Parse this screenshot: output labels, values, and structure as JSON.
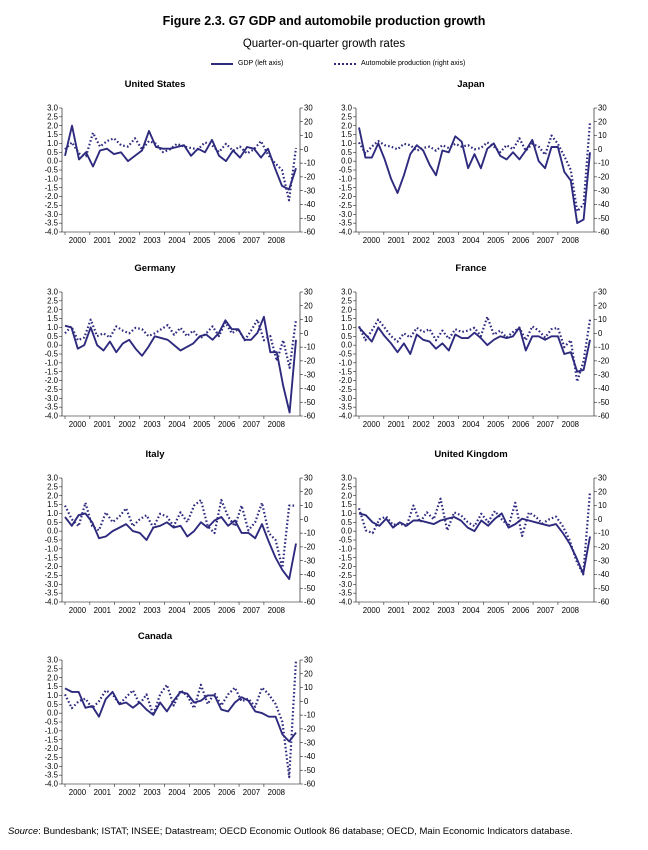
{
  "title": "Figure 2.3. G7 GDP and automobile production growth",
  "subtitle": "Quarter-on-quarter growth rates",
  "legend": {
    "gdp": "GDP (left axis)",
    "auto": "Automobile production (right axis)"
  },
  "colors": {
    "series": "#2e2b7e"
  },
  "source": {
    "label": "Source",
    "text": ": Bundesbank; ISTAT; INSEE; Datastream; OECD Economic Outlook 86 database; OECD, Main Economic Indicators database."
  },
  "chart_data": [
    {
      "type": "line",
      "title": "United States",
      "x_tick_labels": [
        "2000",
        "2001",
        "2002",
        "2003",
        "2004",
        "2005",
        "2006",
        "2007",
        "2008"
      ],
      "left_ylim": [
        -4.0,
        3.0
      ],
      "left_ticks": [
        "3.0",
        "2.5",
        "2.0",
        "1.5",
        "1.0",
        "0.5",
        "0.0",
        "-0.5",
        "-1.0",
        "-1.5",
        "-2.0",
        "-2.5",
        "-3.0",
        "-3.5",
        "-4.0"
      ],
      "right_ylim": [
        -60,
        30
      ],
      "right_ticks": [
        "30",
        "20",
        "10",
        "0",
        "-10",
        "-20",
        "-30",
        "-40",
        "-50",
        "-60"
      ],
      "series": [
        {
          "name": "GDP (left axis)",
          "axis": "left",
          "style": "solid",
          "values": [
            0.3,
            2.0,
            0.1,
            0.5,
            -0.3,
            0.6,
            0.7,
            0.4,
            0.5,
            0.0,
            0.3,
            0.6,
            1.7,
            0.8,
            0.7,
            0.7,
            0.8,
            0.9,
            0.3,
            0.7,
            0.5,
            1.2,
            0.3,
            0.0,
            0.6,
            0.2,
            0.8,
            0.7,
            0.2,
            0.7,
            -0.4,
            -1.4,
            -1.6,
            -0.4
          ]
        },
        {
          "name": "Automobile production (right axis)",
          "axis": "right",
          "style": "dotted",
          "values": [
            0,
            5,
            -3,
            -5,
            12,
            2,
            6,
            8,
            3,
            2,
            8,
            0,
            6,
            4,
            -2,
            0,
            4,
            2,
            1,
            0,
            5,
            3,
            -2,
            4,
            -1,
            2,
            -3,
            0,
            6,
            -4,
            -10,
            -15,
            -37,
            1
          ]
        }
      ]
    },
    {
      "type": "line",
      "title": "Japan",
      "x_tick_labels": [
        "2000",
        "2001",
        "2002",
        "2003",
        "2004",
        "2005",
        "2006",
        "2007",
        "2008"
      ],
      "left_ylim": [
        -4.0,
        3.0
      ],
      "left_ticks": [
        "3.0",
        "2.5",
        "2.0",
        "1.5",
        "1.0",
        "0.5",
        "0.0",
        "-0.5",
        "-1.0",
        "-1.5",
        "-2.0",
        "-2.5",
        "-3.0",
        "-3.5",
        "-4.0"
      ],
      "right_ylim": [
        -60,
        30
      ],
      "right_ticks": [
        "30",
        "20",
        "10",
        "0",
        "-10",
        "-20",
        "-30",
        "-40",
        "-50",
        "-60"
      ],
      "series": [
        {
          "name": "GDP (left axis)",
          "axis": "left",
          "style": "solid",
          "values": [
            1.9,
            0.2,
            0.2,
            1.0,
            0.1,
            -1.0,
            -1.8,
            -0.8,
            0.4,
            0.9,
            0.6,
            -0.2,
            -0.8,
            0.6,
            0.5,
            1.4,
            1.1,
            -0.4,
            0.4,
            -0.4,
            0.7,
            1.0,
            0.3,
            0.1,
            0.5,
            0.1,
            0.6,
            1.2,
            0.0,
            -0.4,
            0.8,
            0.8,
            -0.6,
            -1.1,
            -3.5,
            -3.3,
            0.5
          ]
        },
        {
          "name": "Automobile production (right axis)",
          "axis": "right",
          "style": "dotted",
          "values": [
            5,
            -3,
            2,
            6,
            3,
            2,
            0,
            4,
            3,
            -1,
            1,
            2,
            -1,
            3,
            1,
            4,
            2,
            3,
            0,
            1,
            5,
            2,
            -2,
            3,
            0,
            8,
            -1,
            4,
            2,
            -4,
            10,
            4,
            -5,
            -15,
            -45,
            -40,
            20
          ]
        }
      ]
    },
    {
      "type": "line",
      "title": "Germany",
      "x_tick_labels": [
        "2000",
        "2001",
        "2002",
        "2003",
        "2004",
        "2005",
        "2006",
        "2007",
        "2008"
      ],
      "left_ylim": [
        -4.0,
        3.0
      ],
      "left_ticks": [
        "3.0",
        "2.5",
        "2.0",
        "1.5",
        "1.0",
        "0.5",
        "0.0",
        "-0.5",
        "-1.0",
        "-1.5",
        "-2.0",
        "-2.5",
        "-3.0",
        "-3.5",
        "-4.0"
      ],
      "right_ylim": [
        -60,
        30
      ],
      "right_ticks": [
        "30",
        "20",
        "10",
        "0",
        "-10",
        "-20",
        "-30",
        "-40",
        "-50",
        "-60"
      ],
      "series": [
        {
          "name": "GDP (left axis)",
          "axis": "left",
          "style": "solid",
          "values": [
            1.1,
            1.0,
            -0.2,
            0.0,
            1.0,
            0.0,
            -0.3,
            0.2,
            -0.4,
            0.1,
            0.3,
            -0.2,
            -0.6,
            -0.1,
            0.5,
            0.4,
            0.3,
            0.0,
            -0.3,
            -0.1,
            0.1,
            0.5,
            0.6,
            0.3,
            0.7,
            1.4,
            0.9,
            0.9,
            0.3,
            0.3,
            0.7,
            1.6,
            -0.4,
            -0.4,
            -2.3,
            -3.8,
            0.3
          ]
        },
        {
          "name": "Automobile production (right axis)",
          "axis": "right",
          "style": "dotted",
          "values": [
            0,
            5,
            -5,
            -3,
            10,
            -2,
            0,
            -3,
            5,
            2,
            0,
            4,
            3,
            -2,
            0,
            3,
            6,
            -1,
            4,
            -2,
            2,
            -4,
            0,
            5,
            -2,
            8,
            0,
            3,
            -5,
            2,
            10,
            -5,
            -2,
            -20,
            -5,
            -25,
            10
          ]
        }
      ]
    },
    {
      "type": "line",
      "title": "France",
      "x_tick_labels": [
        "2000",
        "2001",
        "2002",
        "2003",
        "2004",
        "2005",
        "2006",
        "2007",
        "2008"
      ],
      "left_ylim": [
        -4.0,
        3.0
      ],
      "left_ticks": [
        "3.0",
        "2.5",
        "2.0",
        "1.5",
        "1.0",
        "0.5",
        "0.0",
        "-0.5",
        "-1.0",
        "-1.5",
        "-2.0",
        "-2.5",
        "-3.0",
        "-3.5",
        "-4.0"
      ],
      "right_ylim": [
        -60,
        30
      ],
      "right_ticks": [
        "30",
        "20",
        "10",
        "0",
        "-10",
        "-20",
        "-30",
        "-40",
        "-50",
        "-60"
      ],
      "series": [
        {
          "name": "GDP (left axis)",
          "axis": "left",
          "style": "solid",
          "values": [
            1.0,
            0.6,
            0.2,
            1.0,
            0.5,
            0.1,
            -0.4,
            0.1,
            -0.5,
            0.6,
            0.3,
            0.2,
            -0.2,
            0.1,
            -0.3,
            0.6,
            0.4,
            0.4,
            0.7,
            0.4,
            0.0,
            0.3,
            0.5,
            0.4,
            0.5,
            1.0,
            -0.3,
            0.5,
            0.5,
            0.3,
            0.5,
            0.5,
            -0.5,
            -0.4,
            -1.5,
            -1.4,
            0.3
          ]
        },
        {
          "name": "Automobile production (right axis)",
          "axis": "right",
          "style": "dotted",
          "values": [
            5,
            -5,
            2,
            10,
            4,
            -2,
            -6,
            0,
            -3,
            4,
            1,
            3,
            -5,
            2,
            -4,
            3,
            1,
            2,
            4,
            -2,
            12,
            -1,
            2,
            -3,
            1,
            4,
            -5,
            5,
            2,
            -3,
            3,
            4,
            -10,
            -5,
            -35,
            -20,
            10
          ]
        }
      ]
    },
    {
      "type": "line",
      "title": "Italy",
      "x_tick_labels": [
        "2000",
        "2001",
        "2002",
        "2003",
        "2004",
        "2005",
        "2006",
        "2007",
        "2008"
      ],
      "left_ylim": [
        -4.0,
        3.0
      ],
      "left_ticks": [
        "3.0",
        "2.5",
        "2.0",
        "1.5",
        "1.0",
        "0.5",
        "0.0",
        "-0.5",
        "-1.0",
        "-1.5",
        "-2.0",
        "-2.5",
        "-3.0",
        "-3.5",
        "-4.0"
      ],
      "right_ylim": [
        -60,
        30
      ],
      "right_ticks": [
        "30",
        "20",
        "10",
        "0",
        "-10",
        "-20",
        "-30",
        "-40",
        "-50",
        "-60"
      ],
      "series": [
        {
          "name": "GDP (left axis)",
          "axis": "left",
          "style": "solid",
          "values": [
            0.8,
            0.3,
            0.9,
            1.0,
            0.5,
            -0.4,
            -0.3,
            0.0,
            0.2,
            0.4,
            0.0,
            -0.1,
            -0.5,
            0.2,
            0.3,
            0.5,
            0.2,
            0.3,
            -0.3,
            0.0,
            0.5,
            0.2,
            0.6,
            0.8,
            0.3,
            0.6,
            -0.1,
            -0.1,
            -0.4,
            0.4,
            -0.6,
            -1.5,
            -2.2,
            -2.7,
            -0.7
          ]
        },
        {
          "name": "Automobile production (right axis)",
          "axis": "right",
          "style": "dotted",
          "values": [
            10,
            0,
            -5,
            12,
            -5,
            -8,
            5,
            -2,
            2,
            8,
            -5,
            0,
            3,
            -6,
            4,
            2,
            -5,
            5,
            -2,
            10,
            14,
            -5,
            -10,
            14,
            2,
            -5,
            10,
            -8,
            -2,
            12,
            -10,
            -15,
            -35,
            10,
            10
          ]
        }
      ]
    },
    {
      "type": "line",
      "title": "United Kingdom",
      "x_tick_labels": [
        "2000",
        "2001",
        "2002",
        "2003",
        "2004",
        "2005",
        "2006",
        "2007",
        "2008"
      ],
      "left_ylim": [
        -4.0,
        3.0
      ],
      "left_ticks": [
        "3.0",
        "2.5",
        "2.0",
        "1.5",
        "1.0",
        "0.5",
        "0.0",
        "-0.5",
        "-1.0",
        "-1.5",
        "-2.0",
        "-2.5",
        "-3.0",
        "-3.5",
        "-4.0"
      ],
      "right_ylim": [
        -60,
        30
      ],
      "right_ticks": [
        "30",
        "20",
        "10",
        "0",
        "-10",
        "-20",
        "-30",
        "-40",
        "-50",
        "-60"
      ],
      "series": [
        {
          "name": "GDP (left axis)",
          "axis": "left",
          "style": "solid",
          "values": [
            1.0,
            0.9,
            0.5,
            0.3,
            0.7,
            0.2,
            0.5,
            0.3,
            0.6,
            0.6,
            0.5,
            0.4,
            0.6,
            0.7,
            0.8,
            0.6,
            0.2,
            0.0,
            0.6,
            0.3,
            0.7,
            1.0,
            0.2,
            0.4,
            0.7,
            0.6,
            0.5,
            0.4,
            0.3,
            0.4,
            -0.1,
            -0.7,
            -1.5,
            -2.4,
            -0.3
          ]
        },
        {
          "name": "Automobile production (right axis)",
          "axis": "right",
          "style": "dotted",
          "values": [
            8,
            -8,
            -10,
            0,
            2,
            -4,
            -3,
            -5,
            10,
            -2,
            5,
            0,
            15,
            -8,
            5,
            3,
            -2,
            -5,
            4,
            -2,
            6,
            0,
            -5,
            12,
            -12,
            5,
            2,
            -3,
            0,
            2,
            -5,
            -15,
            -30,
            -40,
            20
          ]
        }
      ]
    },
    {
      "type": "line",
      "title": "Canada",
      "x_tick_labels": [
        "2000",
        "2001",
        "2002",
        "2003",
        "2004",
        "2005",
        "2006",
        "2007",
        "2008"
      ],
      "left_ylim": [
        -4.0,
        3.0
      ],
      "left_ticks": [
        "3.0",
        "2.5",
        "2.0",
        "1.5",
        "1.0",
        "0.5",
        "0.0",
        "-0.5",
        "-1.0",
        "-1.5",
        "-2.0",
        "-2.5",
        "-3.0",
        "-3.5",
        "-4.0"
      ],
      "right_ylim": [
        -60,
        30
      ],
      "right_ticks": [
        "30",
        "20",
        "10",
        "0",
        "-10",
        "-20",
        "-30",
        "-40",
        "-50",
        "-60"
      ],
      "series": [
        {
          "name": "GDP (left axis)",
          "axis": "left",
          "style": "solid",
          "values": [
            1.4,
            1.2,
            1.2,
            0.3,
            0.4,
            -0.2,
            0.8,
            1.2,
            0.5,
            0.6,
            0.3,
            0.6,
            0.2,
            -0.1,
            0.6,
            0.1,
            0.7,
            1.2,
            1.1,
            0.6,
            0.7,
            1.0,
            1.0,
            0.2,
            0.1,
            0.6,
            0.9,
            0.7,
            0.1,
            0.0,
            -0.2,
            -0.2,
            -1.2,
            -1.6,
            -1.1
          ]
        },
        {
          "name": "Automobile production (right axis)",
          "axis": "right",
          "style": "dotted",
          "values": [
            5,
            -5,
            0,
            2,
            -5,
            0,
            8,
            5,
            -2,
            3,
            8,
            -2,
            5,
            -10,
            5,
            12,
            -3,
            8,
            4,
            -5,
            12,
            -2,
            6,
            -3,
            5,
            10,
            0,
            2,
            -4,
            10,
            5,
            -2,
            -15,
            -55,
            30
          ]
        }
      ]
    }
  ]
}
